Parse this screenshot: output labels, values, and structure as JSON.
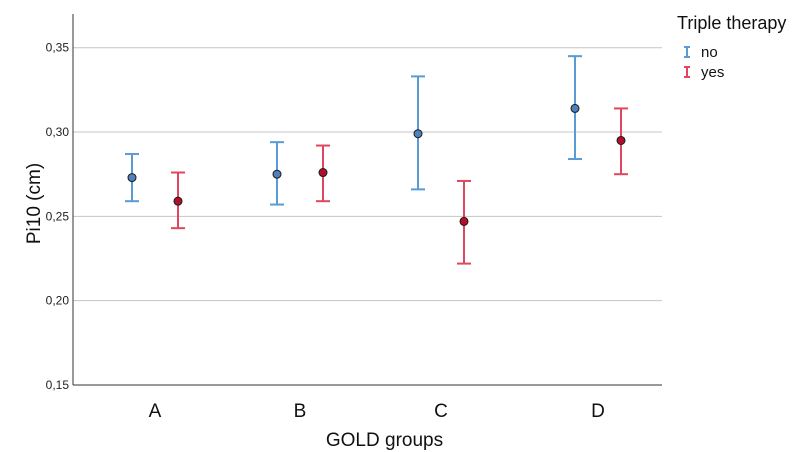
{
  "chart_data": {
    "type": "scatter",
    "subtype": "error-bar",
    "xlabel": "GOLD groups",
    "ylabel": "Pi10 (cm)",
    "categories": [
      "A",
      "B",
      "C",
      "D"
    ],
    "ylim": [
      0.15,
      0.37
    ],
    "yticks": [
      "0,15",
      "0,20",
      "0,25",
      "0,30",
      "0,35"
    ],
    "grid": true,
    "legend": {
      "title": "Triple therapy",
      "placement": "top-right"
    },
    "series": [
      {
        "name": "no",
        "color": "#5b9bd5",
        "marker_color": "#4f81bd",
        "mean": [
          0.273,
          0.275,
          0.299,
          0.314
        ],
        "lower": [
          0.259,
          0.257,
          0.266,
          0.284
        ],
        "upper": [
          0.287,
          0.294,
          0.333,
          0.345
        ]
      },
      {
        "name": "yes",
        "color": "#e0475f",
        "marker_color": "#b0102e",
        "mean": [
          0.259,
          0.276,
          0.247,
          0.295
        ],
        "lower": [
          0.243,
          0.259,
          0.222,
          0.275
        ],
        "upper": [
          0.276,
          0.292,
          0.271,
          0.314
        ]
      }
    ]
  }
}
